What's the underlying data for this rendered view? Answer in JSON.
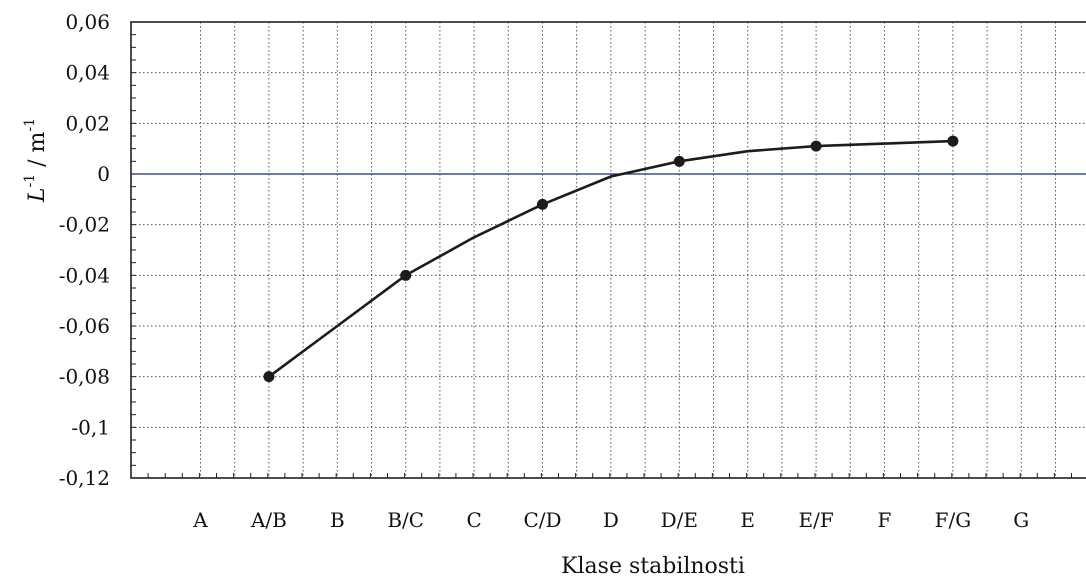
{
  "chart_data": {
    "type": "line",
    "xlabel": "Klase stabilnosti",
    "ylabel": {
      "base": "L",
      "base_sup": "-1",
      "sep": " / ",
      "unit": "m",
      "unit_sup": "-1"
    },
    "categories": [
      "A",
      "A/B",
      "B",
      "B/C",
      "C",
      "C/D",
      "D",
      "D/E",
      "E",
      "E/F",
      "F",
      "F/G",
      "G"
    ],
    "ylim": [
      -0.12,
      0.06
    ],
    "yticks": [
      {
        "value": 0.06,
        "label": "0,06"
      },
      {
        "value": 0.04,
        "label": "0,04"
      },
      {
        "value": 0.02,
        "label": "0,02"
      },
      {
        "value": 0,
        "label": "0"
      },
      {
        "value": -0.02,
        "label": "-0,02"
      },
      {
        "value": -0.04,
        "label": "-0,04"
      },
      {
        "value": -0.06,
        "label": "-0,06"
      },
      {
        "value": -0.08,
        "label": "-0,08"
      },
      {
        "value": -0.1,
        "label": "-0,1"
      },
      {
        "value": -0.12,
        "label": "-0,12"
      }
    ],
    "grid": true,
    "series": [
      {
        "line": [
          {
            "x": "A/B",
            "y": -0.08
          },
          {
            "x": "B",
            "y": -0.06
          },
          {
            "x": "B/C",
            "y": -0.04
          },
          {
            "x": "C",
            "y": -0.025
          },
          {
            "x": "C/D",
            "y": -0.012
          },
          {
            "x": "D",
            "y": -0.001
          },
          {
            "x": "D/E",
            "y": 0.005
          },
          {
            "x": "E",
            "y": 0.009
          },
          {
            "x": "E/F",
            "y": 0.011
          },
          {
            "x": "F",
            "y": 0.012
          },
          {
            "x": "F/G",
            "y": 0.013
          }
        ],
        "markers": [
          {
            "x": "A/B",
            "y": -0.08
          },
          {
            "x": "B/C",
            "y": -0.04
          },
          {
            "x": "C/D",
            "y": -0.012
          },
          {
            "x": "D/E",
            "y": 0.005
          },
          {
            "x": "E/F",
            "y": 0.011
          },
          {
            "x": "F/G",
            "y": 0.013
          }
        ]
      }
    ]
  }
}
